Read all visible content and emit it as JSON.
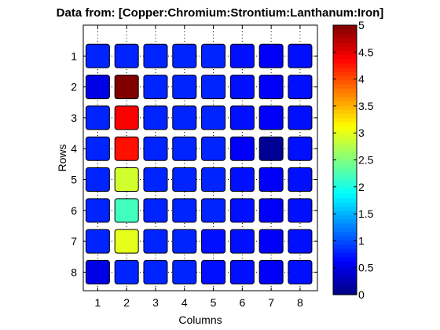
{
  "chart_data": {
    "type": "heatmap",
    "title": "Data from: [Copper:Chromium:Strontium:Lanthanum:Iron]",
    "xlabel": "Columns",
    "ylabel": "Rows",
    "columns": [
      "1",
      "2",
      "3",
      "4",
      "5",
      "6",
      "7",
      "8"
    ],
    "rows": [
      "1",
      "2",
      "3",
      "4",
      "5",
      "6",
      "7",
      "8"
    ],
    "values": [
      [
        0.8,
        0.8,
        0.8,
        0.8,
        0.8,
        0.7,
        0.6,
        0.7
      ],
      [
        0.5,
        5.0,
        0.8,
        0.8,
        0.8,
        0.7,
        0.6,
        0.7
      ],
      [
        0.8,
        4.4,
        0.8,
        0.8,
        0.8,
        0.7,
        0.6,
        0.7
      ],
      [
        0.8,
        4.3,
        0.8,
        0.8,
        0.8,
        0.6,
        0.1,
        0.7
      ],
      [
        0.8,
        2.9,
        0.8,
        0.8,
        0.8,
        0.7,
        0.6,
        0.7
      ],
      [
        0.8,
        2.2,
        0.8,
        0.8,
        0.8,
        0.7,
        0.6,
        0.7
      ],
      [
        0.8,
        3.0,
        0.8,
        0.8,
        0.7,
        0.7,
        0.6,
        0.7
      ],
      [
        0.5,
        0.8,
        0.8,
        0.8,
        0.7,
        0.7,
        0.6,
        0.7
      ]
    ],
    "colorbar": {
      "range": [
        0,
        5
      ],
      "ticks": [
        "0",
        "0.5",
        "1",
        "1.5",
        "2",
        "2.5",
        "3",
        "3.5",
        "4",
        "4.5",
        "5"
      ],
      "colormap": "jet"
    },
    "grid": true
  }
}
